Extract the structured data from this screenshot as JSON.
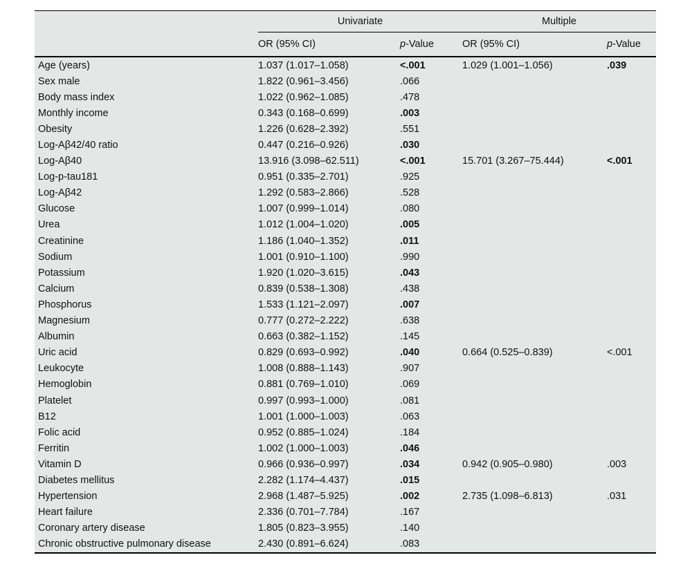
{
  "table": {
    "colors": {
      "table_background": "#e3e8e6",
      "border": "#000000",
      "text": "#111111"
    },
    "groups": [
      {
        "label": "Univariate"
      },
      {
        "label": "Multiple"
      }
    ],
    "subheaders": {
      "or_univariate": "OR (95% CI)",
      "or_multiple": "OR (95% CI)",
      "p_italic": "p",
      "p_rest": "-Value"
    },
    "rows": [
      {
        "label": "Age (years)",
        "or1": "1.037 (1.017–1.058)",
        "p1": "<.001",
        "p1_bold": true,
        "or2": "1.029 (1.001–1.056)",
        "p2": ".039",
        "p2_bold": true
      },
      {
        "label": "Sex male",
        "or1": "1.822 (0.961–3.456)",
        "p1": ".066",
        "p1_bold": false,
        "or2": "",
        "p2": "",
        "p2_bold": false
      },
      {
        "label": "Body mass index",
        "or1": "1.022 (0.962–1.085)",
        "p1": ".478",
        "p1_bold": false,
        "or2": "",
        "p2": "",
        "p2_bold": false
      },
      {
        "label": "Monthly income",
        "or1": "0.343 (0.168–0.699)",
        "p1": ".003",
        "p1_bold": true,
        "or2": "",
        "p2": "",
        "p2_bold": false
      },
      {
        "label": "Obesity",
        "or1": "1.226 (0.628–2.392)",
        "p1": ".551",
        "p1_bold": false,
        "or2": "",
        "p2": "",
        "p2_bold": false
      },
      {
        "label": "Log-Aβ42/40 ratio",
        "or1": "0.447 (0.216–0.926)",
        "p1": ".030",
        "p1_bold": true,
        "or2": "",
        "p2": "",
        "p2_bold": false
      },
      {
        "label": "Log-Aβ40",
        "or1": "13.916 (3.098–62.511)",
        "p1": "<.001",
        "p1_bold": true,
        "or2": "15.701 (3.267–75.444)",
        "p2": "<.001",
        "p2_bold": true
      },
      {
        "label": "Log-p-tau181",
        "or1": "0.951 (0.335–2.701)",
        "p1": ".925",
        "p1_bold": false,
        "or2": "",
        "p2": "",
        "p2_bold": false
      },
      {
        "label": "Log-Aβ42",
        "or1": "1.292 (0.583–2.866)",
        "p1": ".528",
        "p1_bold": false,
        "or2": "",
        "p2": "",
        "p2_bold": false
      },
      {
        "label": "Glucose",
        "or1": "1.007 (0.999–1.014)",
        "p1": ".080",
        "p1_bold": false,
        "or2": "",
        "p2": "",
        "p2_bold": false
      },
      {
        "label": "Urea",
        "or1": "1.012 (1.004–1.020)",
        "p1": ".005",
        "p1_bold": true,
        "or2": "",
        "p2": "",
        "p2_bold": false
      },
      {
        "label": "Creatinine",
        "or1": "1.186 (1.040–1.352)",
        "p1": ".011",
        "p1_bold": true,
        "or2": "",
        "p2": "",
        "p2_bold": false
      },
      {
        "label": "Sodium",
        "or1": "1.001 (0.910–1.100)",
        "p1": ".990",
        "p1_bold": false,
        "or2": "",
        "p2": "",
        "p2_bold": false
      },
      {
        "label": "Potassium",
        "or1": "1.920 (1.020–3.615)",
        "p1": ".043",
        "p1_bold": true,
        "or2": "",
        "p2": "",
        "p2_bold": false
      },
      {
        "label": "Calcium",
        "or1": "0.839 (0.538–1.308)",
        "p1": ".438",
        "p1_bold": false,
        "or2": "",
        "p2": "",
        "p2_bold": false
      },
      {
        "label": "Phosphorus",
        "or1": "1.533 (1.121–2.097)",
        "p1": ".007",
        "p1_bold": true,
        "or2": "",
        "p2": "",
        "p2_bold": false
      },
      {
        "label": "Magnesium",
        "or1": "0.777 (0.272–2.222)",
        "p1": ".638",
        "p1_bold": false,
        "or2": "",
        "p2": "",
        "p2_bold": false
      },
      {
        "label": "Albumin",
        "or1": "0.663 (0.382–1.152)",
        "p1": ".145",
        "p1_bold": false,
        "or2": "",
        "p2": "",
        "p2_bold": false
      },
      {
        "label": "Uric acid",
        "or1": "0.829 (0.693–0.992)",
        "p1": ".040",
        "p1_bold": true,
        "or2": "0.664 (0.525–0.839)",
        "p2": "<.001",
        "p2_bold": false
      },
      {
        "label": "Leukocyte",
        "or1": "1.008 (0.888–1.143)",
        "p1": ".907",
        "p1_bold": false,
        "or2": "",
        "p2": "",
        "p2_bold": false
      },
      {
        "label": "Hemoglobin",
        "or1": "0.881 (0.769–1.010)",
        "p1": ".069",
        "p1_bold": false,
        "or2": "",
        "p2": "",
        "p2_bold": false
      },
      {
        "label": "Platelet",
        "or1": "0.997 (0.993–1.000)",
        "p1": ".081",
        "p1_bold": false,
        "or2": "",
        "p2": "",
        "p2_bold": false
      },
      {
        "label": "B12",
        "or1": "1.001 (1.000–1.003)",
        "p1": ".063",
        "p1_bold": false,
        "or2": "",
        "p2": "",
        "p2_bold": false
      },
      {
        "label": "Folic acid",
        "or1": "0.952 (0.885–1.024)",
        "p1": ".184",
        "p1_bold": false,
        "or2": "",
        "p2": "",
        "p2_bold": false
      },
      {
        "label": "Ferritin",
        "or1": "1.002 (1.000–1.003)",
        "p1": ".046",
        "p1_bold": true,
        "or2": "",
        "p2": "",
        "p2_bold": false
      },
      {
        "label": "Vitamin D",
        "or1": "0.966 (0.936–0.997)",
        "p1": ".034",
        "p1_bold": true,
        "or2": "0.942 (0.905–0.980)",
        "p2": ".003",
        "p2_bold": false
      },
      {
        "label": "Diabetes mellitus",
        "or1": "2.282 (1.174–4.437)",
        "p1": ".015",
        "p1_bold": true,
        "or2": "",
        "p2": "",
        "p2_bold": false
      },
      {
        "label": "Hypertension",
        "or1": "2.968 (1.487–5.925)",
        "p1": ".002",
        "p1_bold": true,
        "or2": "2.735 (1.098–6.813)",
        "p2": ".031",
        "p2_bold": false
      },
      {
        "label": "Heart failure",
        "or1": "2.336 (0.701–7.784)",
        "p1": ".167",
        "p1_bold": false,
        "or2": "",
        "p2": "",
        "p2_bold": false
      },
      {
        "label": "Coronary artery disease",
        "or1": "1.805 (0.823–3.955)",
        "p1": ".140",
        "p1_bold": false,
        "or2": "",
        "p2": "",
        "p2_bold": false
      },
      {
        "label": "Chronic obstructive pulmonary disease",
        "or1": "2.430 (0.891–6.624)",
        "p1": ".083",
        "p1_bold": false,
        "or2": "",
        "p2": "",
        "p2_bold": false
      }
    ]
  }
}
